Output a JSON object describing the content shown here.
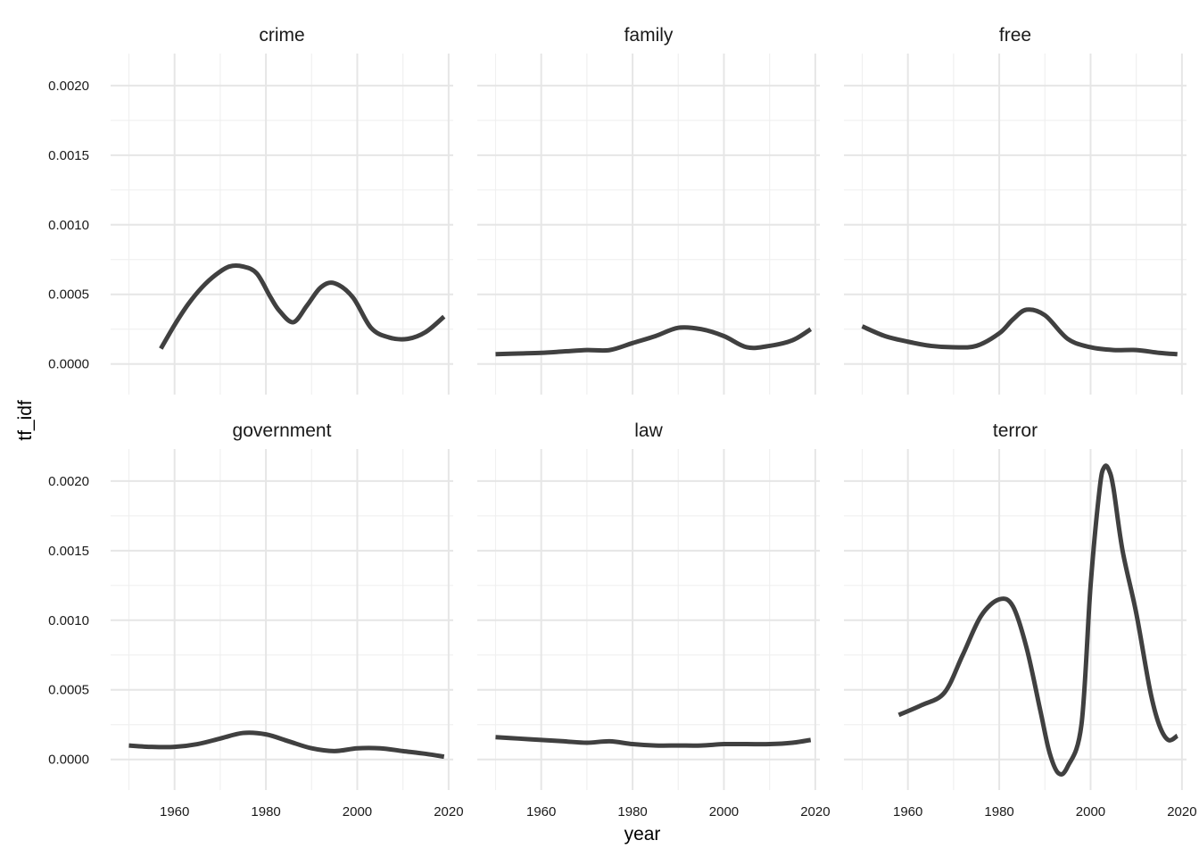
{
  "chart_data": {
    "type": "line",
    "xlabel": "year",
    "ylabel": "tf_idf",
    "xlim": [
      1946,
      2021
    ],
    "ylim": [
      -0.00022,
      0.00223
    ],
    "x_ticks": [
      1960,
      1980,
      2000,
      2020
    ],
    "y_ticks": [
      0.0,
      0.0005,
      0.001,
      0.0015,
      0.002
    ],
    "y_tick_labels": [
      "0.0000",
      "0.0005",
      "0.0010",
      "0.0015",
      "0.0020"
    ],
    "grid": true,
    "line_color": "#404040",
    "panels": [
      {
        "name": "crime",
        "x": [
          1957,
          1960,
          1963,
          1966,
          1969,
          1972,
          1975,
          1978,
          1981,
          1983,
          1986,
          1989,
          1992,
          1995,
          1999,
          2003,
          2007,
          2011,
          2015,
          2019
        ],
        "y": [
          0.00011,
          0.00028,
          0.00043,
          0.00055,
          0.00064,
          0.0007,
          0.0007,
          0.00065,
          0.00048,
          0.00038,
          0.0003,
          0.00042,
          0.00055,
          0.00058,
          0.00048,
          0.00026,
          0.00019,
          0.00018,
          0.00023,
          0.00034
        ]
      },
      {
        "name": "family",
        "x": [
          1950,
          1955,
          1960,
          1965,
          1970,
          1975,
          1980,
          1985,
          1990,
          1995,
          2000,
          2005,
          2010,
          2015,
          2019
        ],
        "y": [
          7e-05,
          7.5e-05,
          8e-05,
          9e-05,
          0.0001,
          0.0001,
          0.00015,
          0.0002,
          0.00026,
          0.00025,
          0.0002,
          0.00012,
          0.00013,
          0.00017,
          0.00025
        ]
      },
      {
        "name": "free",
        "x": [
          1950,
          1955,
          1960,
          1965,
          1970,
          1975,
          1980,
          1983,
          1986,
          1990,
          1995,
          2000,
          2005,
          2010,
          2015,
          2019
        ],
        "y": [
          0.00027,
          0.0002,
          0.00016,
          0.00013,
          0.00012,
          0.00013,
          0.00022,
          0.00032,
          0.00039,
          0.00035,
          0.00018,
          0.00012,
          0.0001,
          0.0001,
          8e-05,
          7e-05
        ]
      },
      {
        "name": "government",
        "x": [
          1950,
          1955,
          1960,
          1965,
          1970,
          1975,
          1980,
          1985,
          1990,
          1995,
          2000,
          2005,
          2010,
          2015,
          2019
        ],
        "y": [
          0.0001,
          9e-05,
          9e-05,
          0.00011,
          0.00015,
          0.00019,
          0.00018,
          0.00013,
          8e-05,
          6e-05,
          8e-05,
          8e-05,
          6e-05,
          4e-05,
          2e-05
        ]
      },
      {
        "name": "law",
        "x": [
          1950,
          1955,
          1960,
          1965,
          1970,
          1975,
          1980,
          1985,
          1990,
          1995,
          2000,
          2005,
          2010,
          2015,
          2019
        ],
        "y": [
          0.00016,
          0.00015,
          0.00014,
          0.00013,
          0.00012,
          0.00013,
          0.00011,
          0.0001,
          0.0001,
          0.0001,
          0.00011,
          0.00011,
          0.00011,
          0.00012,
          0.00014
        ]
      },
      {
        "name": "terror",
        "x": [
          1958,
          1963,
          1968,
          1972,
          1976,
          1980,
          1983,
          1986,
          1989,
          1991,
          1993,
          1995,
          1998,
          2000,
          2002,
          2003,
          2004,
          2005,
          2007,
          2010,
          2013,
          2015,
          2017,
          2019
        ],
        "y": [
          0.00032,
          0.00039,
          0.00048,
          0.00075,
          0.00103,
          0.00115,
          0.0011,
          0.0008,
          0.00035,
          5e-05,
          -0.0001,
          -5e-05,
          0.00025,
          0.00125,
          0.00195,
          0.0021,
          0.00208,
          0.00195,
          0.0015,
          0.00105,
          0.0005,
          0.00025,
          0.00014,
          0.00017
        ]
      }
    ]
  }
}
